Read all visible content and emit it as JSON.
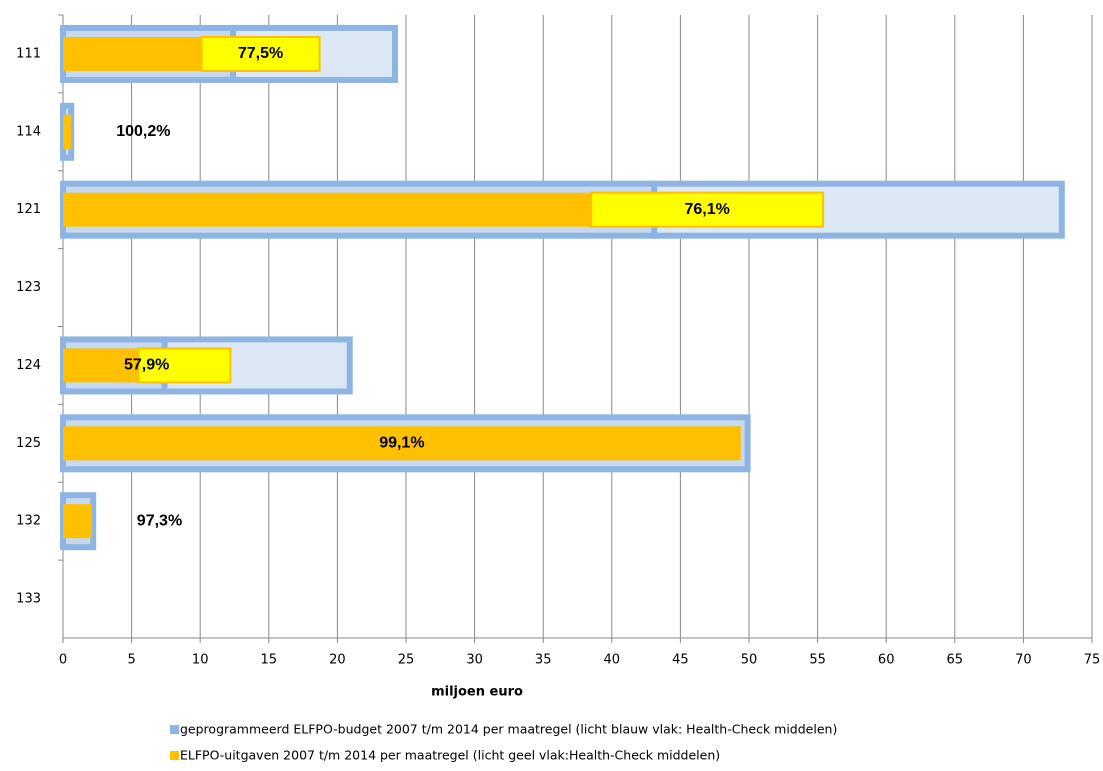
{
  "chart_data": {
    "type": "bar",
    "orientation": "horizontal",
    "x_label": "miljoen euro",
    "categories": [
      "111",
      "114",
      "121",
      "123",
      "124",
      "125",
      "132",
      "133"
    ],
    "series": [
      {
        "name": "geprogrammeerd ELFPO-budget 2007 t/m 2014 per maatregel (licht blauw vlak: Health-Check middelen)",
        "color": "#8eb4e3",
        "fill": "#c6d9f1",
        "hc_fill": "#dde8f5",
        "values": [
          12.4,
          0.6,
          43.1,
          null,
          7.4,
          49.9,
          2.2,
          null
        ],
        "health_check": [
          11.8,
          null,
          29.7,
          null,
          13.5,
          null,
          null,
          null
        ]
      },
      {
        "name": "ELFPO-uitgaven 2007 t/m 2014 per maatregel (licht geel vlak:Health-Check middelen)",
        "color": "#ffc000",
        "hc_fill": "#ffff00",
        "values": [
          10.1,
          0.6,
          38.5,
          null,
          5.5,
          49.4,
          2.1,
          null
        ],
        "health_check": [
          8.6,
          null,
          16.9,
          null,
          6.7,
          null,
          null,
          null
        ]
      }
    ],
    "annotations": [
      "77,5%",
      "100,2%",
      "76,1%",
      null,
      "57,9%",
      "99,1%",
      "97,3%",
      null
    ],
    "xlim": [
      0,
      75
    ],
    "xticks": [
      0,
      5,
      10,
      15,
      20,
      25,
      30,
      35,
      40,
      45,
      50,
      55,
      60,
      65,
      70,
      75
    ],
    "grid": true
  }
}
